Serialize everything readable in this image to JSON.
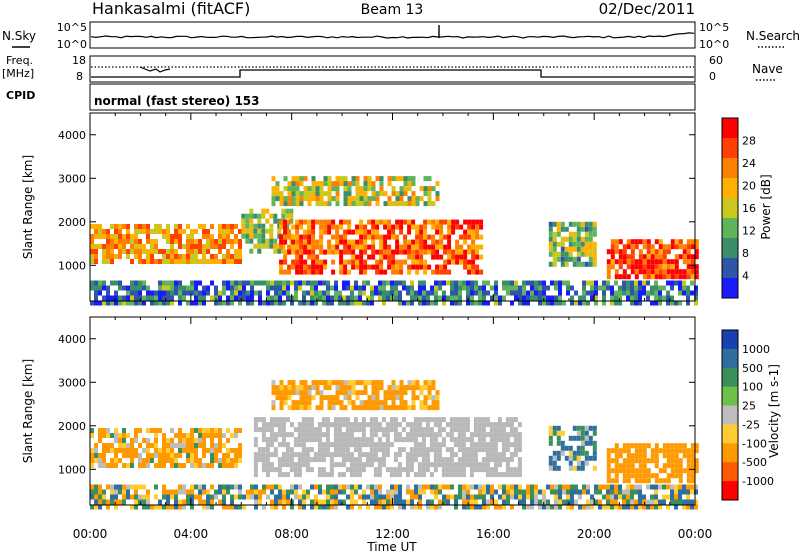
{
  "header": {
    "title": "Hankasalmi (fitACF)",
    "beam": "Beam 13",
    "date": "02/Dec/2011"
  },
  "top_panels": {
    "nsky_label": "N.Sky",
    "nsky_ticks": [
      "10^5",
      "10^0"
    ],
    "nsearch_label": "N.Search",
    "nsearch_ticks": [
      "10^5",
      "10^0"
    ],
    "freq_label_1": "Freq.",
    "freq_label_2": "[MHz]",
    "freq_ticks": [
      "18",
      "8"
    ],
    "nave_label": "Nave",
    "nave_ticks": [
      "60",
      "0"
    ],
    "cpid_label": "CPID",
    "cpid_text": "normal (fast stereo) 153"
  },
  "colors": {
    "power_scale": [
      "#1a1aff",
      "#2f55a8",
      "#3a8f6a",
      "#5fb35a",
      "#c8c81e",
      "#ffb000",
      "#ff8000",
      "#ff4000",
      "#ff0000"
    ],
    "velocity_scale": [
      "#1a3fb0",
      "#2f6fa0",
      "#3a8f5a",
      "#6fc04a",
      "#bdbdbd",
      "#ffcc33",
      "#ff9900",
      "#ff5a00",
      "#ff0000"
    ],
    "ground_scatter": "#b8b8b8"
  },
  "chart_data": [
    {
      "type": "heatmap",
      "name": "power",
      "ylabel": "Slant Range [km]",
      "xlabel": "Time UT",
      "xlim": [
        "00:00",
        "24:00"
      ],
      "xticks": [
        "00:00",
        "04:00",
        "08:00",
        "12:00",
        "16:00",
        "20:00",
        "00:00"
      ],
      "ylim": [
        180,
        4500
      ],
      "yticks": [
        1000,
        2000,
        3000,
        4000
      ],
      "colorbar": {
        "label": "Power [dB]",
        "ticks": [
          "28",
          "24",
          "20",
          "16",
          "12",
          "8",
          "4"
        ],
        "range": [
          0,
          30
        ]
      },
      "scatter_regions": [
        {
          "t0": 0.0,
          "t1": 6.0,
          "r0": 1050,
          "r1": 1950,
          "level": 21
        },
        {
          "t0": 6.0,
          "t1": 8.0,
          "r0": 1300,
          "r1": 2300,
          "level": 14
        },
        {
          "t0": 7.2,
          "t1": 13.8,
          "r0": 2450,
          "r1": 3050,
          "level": 16
        },
        {
          "t0": 7.5,
          "t1": 15.5,
          "r0": 900,
          "r1": 2050,
          "level": 25
        },
        {
          "t0": 18.2,
          "t1": 20.0,
          "r0": 1000,
          "r1": 2000,
          "level": 13
        },
        {
          "t0": 20.5,
          "t1": 24.0,
          "r0": 700,
          "r1": 1600,
          "level": 27
        },
        {
          "t0": 0.0,
          "t1": 24.0,
          "r0": 180,
          "r1": 650,
          "level": 8
        }
      ]
    },
    {
      "type": "heatmap",
      "name": "velocity",
      "ylabel": "Slant Range [km]",
      "xlabel": "Time UT",
      "xlim": [
        "00:00",
        "24:00"
      ],
      "xticks": [
        "00:00",
        "04:00",
        "08:00",
        "12:00",
        "16:00",
        "20:00",
        "00:00"
      ],
      "ylim": [
        180,
        4500
      ],
      "yticks": [
        1000,
        2000,
        3000,
        4000
      ],
      "colorbar": {
        "label": "Velocity [m s-1]",
        "ticks": [
          "1000",
          "500",
          "100",
          "25",
          "-25",
          "-100",
          "-500",
          "-1000"
        ]
      },
      "scatter_regions": [
        {
          "t0": 0.0,
          "t1": 6.0,
          "r0": 1050,
          "r1": 1950,
          "level": -150
        },
        {
          "t0": 7.2,
          "t1": 13.8,
          "r0": 2450,
          "r1": 3050,
          "level": -200
        },
        {
          "t0": 6.5,
          "t1": 17.0,
          "r0": 900,
          "r1": 2200,
          "level": 0
        },
        {
          "t0": 18.2,
          "t1": 20.0,
          "r0": 1000,
          "r1": 2000,
          "level": 150
        },
        {
          "t0": 20.5,
          "t1": 24.0,
          "r0": 700,
          "r1": 1600,
          "level": -300
        },
        {
          "t0": 0.0,
          "t1": 24.0,
          "r0": 180,
          "r1": 650,
          "level": 0
        }
      ]
    }
  ]
}
